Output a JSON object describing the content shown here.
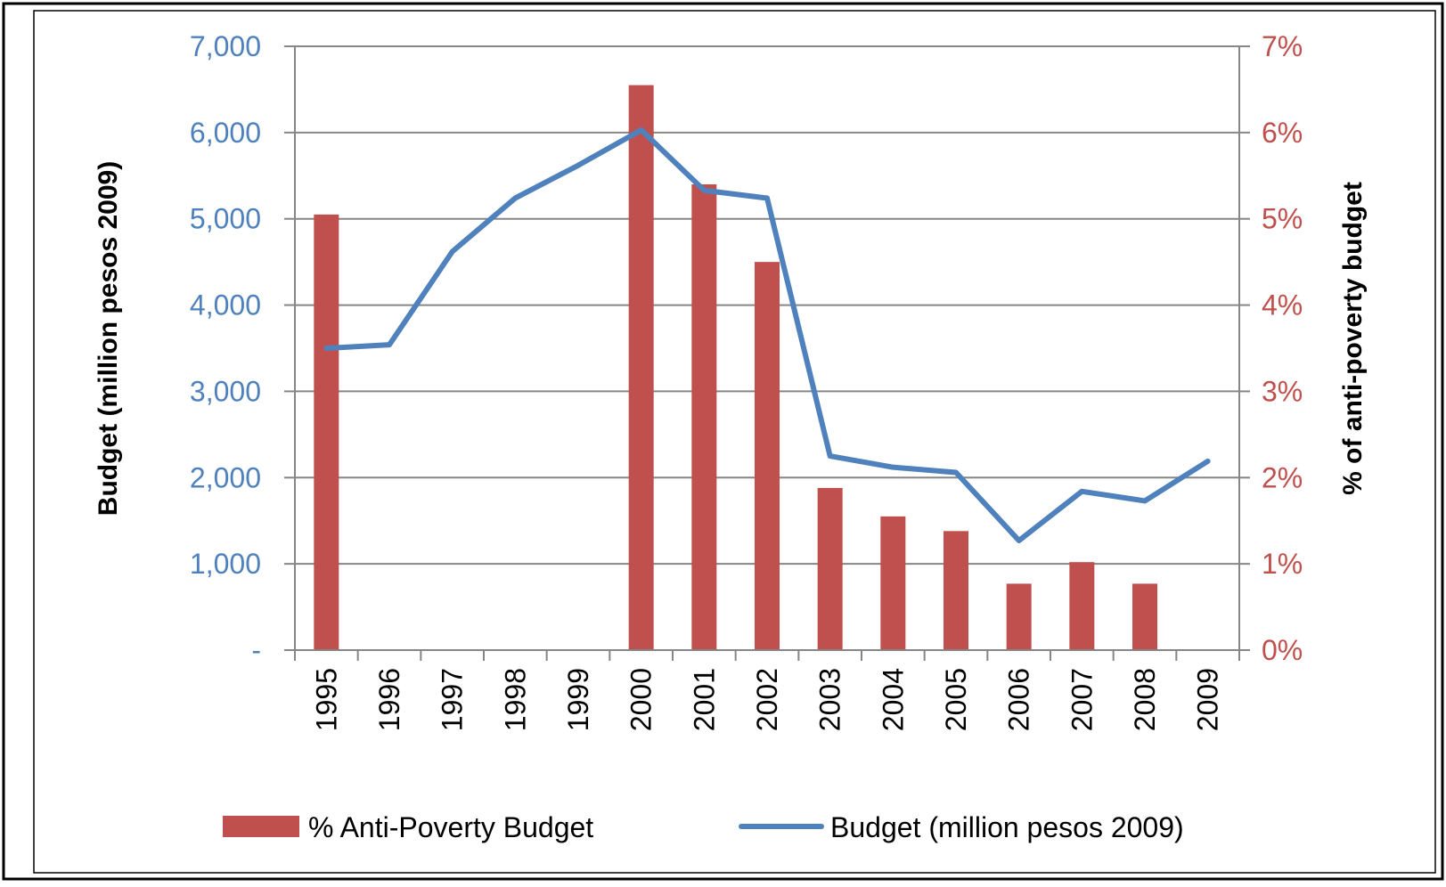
{
  "chart_data": {
    "type": "bar",
    "categories": [
      "1995",
      "1996",
      "1997",
      "1998",
      "1999",
      "2000",
      "2001",
      "2002",
      "2003",
      "2004",
      "2005",
      "2006",
      "2007",
      "2008",
      "2009"
    ],
    "series": [
      {
        "name": "% Anti-Poverty Budget",
        "kind": "bar",
        "axis": "right",
        "color": "#c0504d",
        "values": [
          5.05,
          null,
          null,
          null,
          null,
          6.55,
          5.4,
          4.5,
          1.88,
          1.55,
          1.38,
          0.77,
          1.02,
          0.77,
          null
        ]
      },
      {
        "name": "Budget (million pesos 2009)",
        "kind": "line",
        "axis": "left",
        "color": "#4f81bd",
        "values": [
          3500,
          3540,
          4620,
          5240,
          5620,
          6030,
          5330,
          5240,
          2250,
          2120,
          2060,
          1270,
          1840,
          1730,
          2190
        ]
      }
    ],
    "ylabel": "Budget (million pesos 2009)",
    "ylabel_right": "% of anti-poverty budget",
    "ylim": [
      0,
      7000
    ],
    "ylim_right": [
      0,
      7
    ],
    "yticks": [
      "-",
      "1,000",
      "2,000",
      "3,000",
      "4,000",
      "5,000",
      "6,000",
      "7,000"
    ],
    "yticks_right": [
      "0%",
      "1%",
      "2%",
      "3%",
      "4%",
      "5%",
      "6%",
      "7%"
    ],
    "left_axis_color": "#4f81bd",
    "right_axis_color": "#c0504d",
    "grid": true,
    "legend_position": "bottom"
  }
}
